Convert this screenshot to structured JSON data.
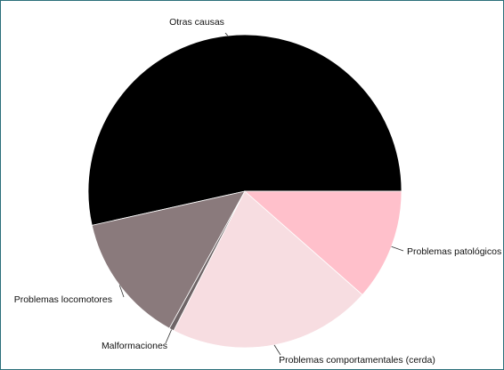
{
  "chart_data": {
    "type": "pie",
    "title": "",
    "start_angle_deg": 0,
    "direction": "counterclockwise",
    "slices": [
      {
        "label": "Otras causas",
        "value": 53.5,
        "color": "#000000"
      },
      {
        "label": "Problemas locomotores",
        "value": 13.5,
        "color": "#8a7a7c"
      },
      {
        "label": "Malformaciones",
        "value": 0.5,
        "color": "#6e6466"
      },
      {
        "label": "Problemas comportamentales (cerda)",
        "value": 21.0,
        "color": "#f7dde1"
      },
      {
        "label": "Problemas patológicos",
        "value": 11.5,
        "color": "#ffc0cb"
      }
    ]
  }
}
